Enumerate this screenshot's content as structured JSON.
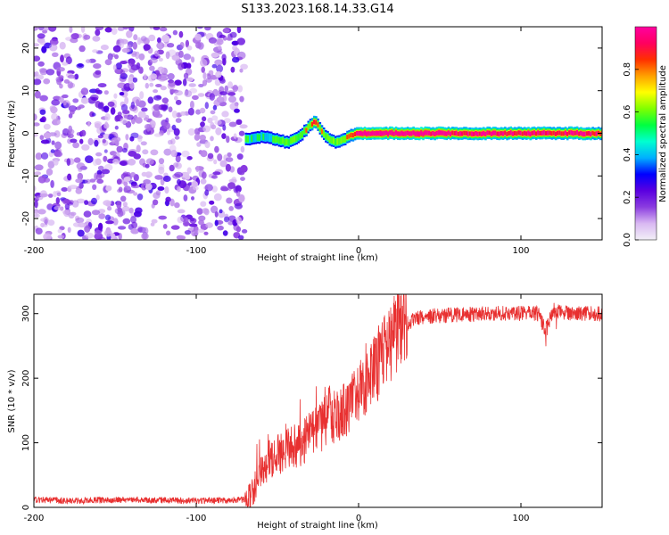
{
  "title": "S133.2023.168.14.33.G14",
  "chart_data": [
    {
      "type": "heatmap",
      "xlabel": "Height of straight line (km)",
      "ylabel": "Frequency (Hz)",
      "xlim": [
        -200,
        150
      ],
      "ylim": [
        -25,
        25
      ],
      "xticks": [
        -200,
        -100,
        0,
        100
      ],
      "yticks": [
        -20,
        -10,
        0,
        10,
        20
      ],
      "colorbar": {
        "label": "Normalized spectral amplitude",
        "range": [
          0.0,
          1.0
        ],
        "ticks": [
          0.0,
          0.2,
          0.4,
          0.6,
          0.8
        ],
        "colormap": [
          "#f2f0f7",
          "#d9b8f2",
          "#8b3de0",
          "#5a00e0",
          "#0000ff",
          "#00b0ff",
          "#00ffd0",
          "#00ff40",
          "#80ff00",
          "#ffff00",
          "#ffa000",
          "#ff3000",
          "#ff0060",
          "#ff00a0"
        ]
      },
      "noise_region_x": [
        -200,
        -70
      ],
      "ridge": {
        "x": [
          -70,
          -60,
          -50,
          -45,
          -40,
          -35,
          -30,
          -27,
          -25,
          -20,
          -15,
          -10,
          -5,
          0,
          20,
          40,
          60,
          80,
          100,
          110,
          120,
          130,
          150
        ],
        "freq": [
          -1.5,
          -0.8,
          -1.5,
          -2.2,
          -1.5,
          0.0,
          2.0,
          2.8,
          1.5,
          -1.0,
          -2.0,
          -1.5,
          -0.5,
          0.0,
          0.0,
          0.0,
          0.0,
          0.0,
          0.0,
          0.0,
          0.0,
          0.0,
          0.0
        ],
        "amplitude": [
          0.55,
          0.5,
          0.55,
          0.6,
          0.6,
          0.6,
          0.7,
          0.8,
          0.7,
          0.6,
          0.6,
          0.65,
          0.75,
          0.95,
          0.97,
          0.97,
          0.9,
          0.85,
          0.88,
          0.9,
          0.85,
          0.88,
          0.85
        ]
      }
    },
    {
      "type": "line",
      "xlabel": "Height of straight line (km)",
      "ylabel": "SNR (10 * v/v)",
      "xlim": [
        -200,
        150
      ],
      "ylim": [
        0,
        330
      ],
      "xticks": [
        -200,
        -100,
        0,
        100
      ],
      "yticks": [
        0,
        100,
        200,
        300
      ],
      "color": "#e83030",
      "series": [
        {
          "x": [
            -200,
            -180,
            -160,
            -140,
            -120,
            -100,
            -80,
            -70,
            -65,
            -60,
            -55,
            -50,
            -45,
            -40,
            -35,
            -30,
            -25,
            -20,
            -17,
            -15,
            -10,
            -5,
            0,
            5,
            10,
            15,
            20,
            25,
            30,
            35,
            40,
            50,
            60,
            70,
            80,
            90,
            100,
            110,
            115,
            120,
            130,
            140,
            150
          ],
          "values": [
            12,
            10,
            11,
            12,
            11,
            10,
            11,
            12,
            25,
            55,
            75,
            80,
            90,
            95,
            100,
            110,
            120,
            135,
            150,
            140,
            145,
            160,
            175,
            195,
            215,
            235,
            255,
            275,
            285,
            292,
            295,
            297,
            298,
            299,
            300,
            300,
            300,
            300,
            275,
            305,
            300,
            300,
            300
          ]
        }
      ]
    }
  ]
}
